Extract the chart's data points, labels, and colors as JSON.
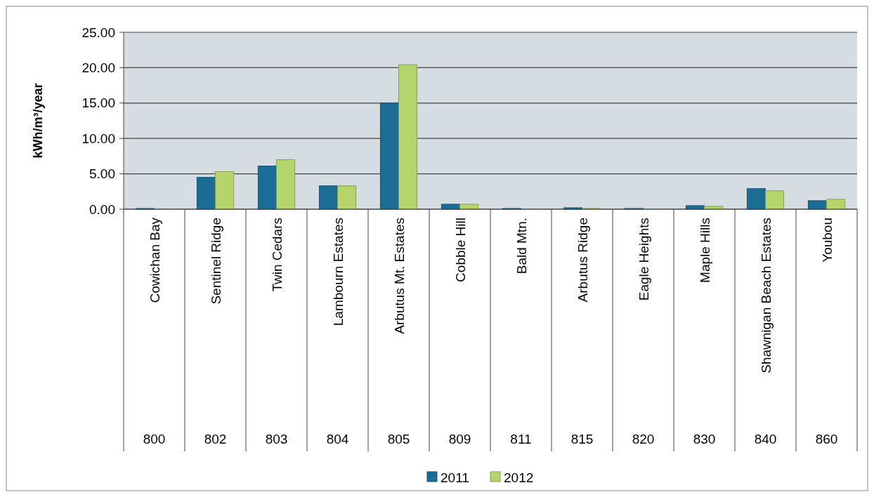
{
  "chart_data": {
    "type": "bar",
    "ylabel": "kWh/m³/year",
    "categories": [
      "Cowichan Bay\n800",
      "Sentinel Ridge\n802",
      "Twin Cedars\n803",
      "Lambourn Estates\n804",
      "Arbutus Mt. Estates\n805",
      "Cobble Hill\n809",
      "Bald Mtn.\n811",
      "Arbutus Ridge\n815",
      "Eagle Heights\n820",
      "Maple Hills\n830",
      "Shawnigan Beach Estates\n840",
      "Youbou\n860"
    ],
    "series": [
      {
        "name": "2011",
        "color": "#1b6d96",
        "values": [
          0.1,
          4.5,
          6.1,
          3.3,
          15.0,
          0.7,
          0.1,
          0.2,
          0.1,
          0.5,
          2.9,
          1.2
        ]
      },
      {
        "name": "2012",
        "color": "#b6d46c",
        "values": [
          0,
          5.3,
          7.0,
          3.3,
          20.4,
          0.7,
          0,
          0.1,
          0,
          0.4,
          2.6,
          1.4
        ]
      }
    ],
    "ylim": [
      0,
      25
    ],
    "yticks": [
      {
        "value": 0,
        "label": "0.00"
      },
      {
        "value": 5,
        "label": "5.00"
      },
      {
        "value": 10,
        "label": "10.00"
      },
      {
        "value": 15,
        "label": "15.00"
      },
      {
        "value": 20,
        "label": "20.00"
      },
      {
        "value": 25,
        "label": "25.00"
      }
    ],
    "grid": "y",
    "legend": "bottom"
  }
}
